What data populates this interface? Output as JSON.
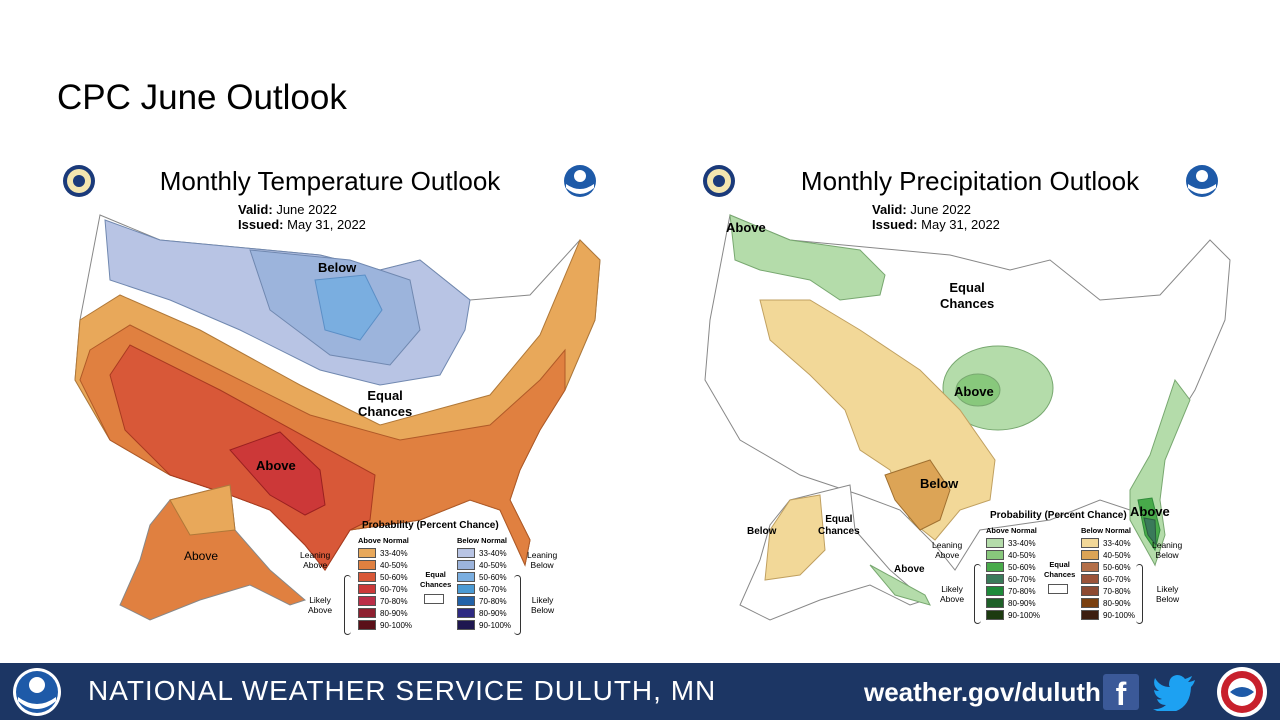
{
  "slide": {
    "title": "CPC June Outlook"
  },
  "temperature": {
    "title": "Monthly Temperature Outlook",
    "valid_label": "Valid:",
    "valid_value": "June 2022",
    "issued_label": "Issued:",
    "issued_value": "May 31, 2022",
    "region_labels": {
      "below": "Below",
      "equal": "Equal\nChances",
      "above_south": "Above",
      "above_alaska": "Above"
    },
    "legend": {
      "title": "Probability (Percent Chance)",
      "above_head": "Above Normal",
      "below_head": "Below Normal",
      "ranges": [
        "33-40%",
        "40-50%",
        "50-60%",
        "60-70%",
        "70-80%",
        "80-90%",
        "90-100%"
      ],
      "above_colors": [
        "#e8a85a",
        "#e08040",
        "#d85838",
        "#cc3838",
        "#bb2e48",
        "#8e2030",
        "#5a1018"
      ],
      "below_colors": [
        "#b8c4e4",
        "#9cb4dc",
        "#7aaee0",
        "#4a9ad4",
        "#2262a8",
        "#2e2a82",
        "#1e1650"
      ],
      "leaning_above": "Leaning\nAbove",
      "likely_above": "Likely\nAbove",
      "leaning_below": "Leaning\nBelow",
      "likely_below": "Likely\nBelow",
      "equal_chances": "Equal\nChances"
    }
  },
  "precipitation": {
    "title": "Monthly Precipitation Outlook",
    "valid_label": "Valid:",
    "valid_value": "June 2022",
    "issued_label": "Issued:",
    "issued_value": "May 31, 2022",
    "region_labels": {
      "above_nw": "Above",
      "equal": "Equal\nChances",
      "above_plains": "Above",
      "below_texas": "Below",
      "above_florida": "Above",
      "below_alaska": "Below",
      "equal_alaska": "Equal\nChances",
      "above_alaska": "Above"
    },
    "legend": {
      "title": "Probability (Percent Chance)",
      "above_head": "Above Normal",
      "below_head": "Below Normal",
      "ranges": [
        "33-40%",
        "40-50%",
        "50-60%",
        "60-70%",
        "70-80%",
        "80-90%",
        "90-100%"
      ],
      "above_colors": [
        "#b4dcaa",
        "#88c87c",
        "#48aa4a",
        "#3a7a5a",
        "#1e8a3a",
        "#1e6028",
        "#1c3a10"
      ],
      "below_colors": [
        "#f2d898",
        "#dca456",
        "#b4704a",
        "#9a5238",
        "#8c4a32",
        "#7a4010",
        "#3c1e10"
      ],
      "leaning_above": "Leaning\nAbove",
      "likely_above": "Likely\nAbove",
      "leaning_below": "Leaning\nBelow",
      "likely_below": "Likely\nBelow",
      "equal_chances": "Equal\nChances"
    }
  },
  "footer": {
    "office_name": "NATIONAL WEATHER SERVICE DULUTH, MN",
    "url": "weather.gov/duluth",
    "icons": [
      "noaa-logo-icon",
      "facebook-icon",
      "twitter-icon",
      "nws-logo-icon"
    ]
  },
  "colors": {
    "footer_bg": "#1c3664"
  }
}
